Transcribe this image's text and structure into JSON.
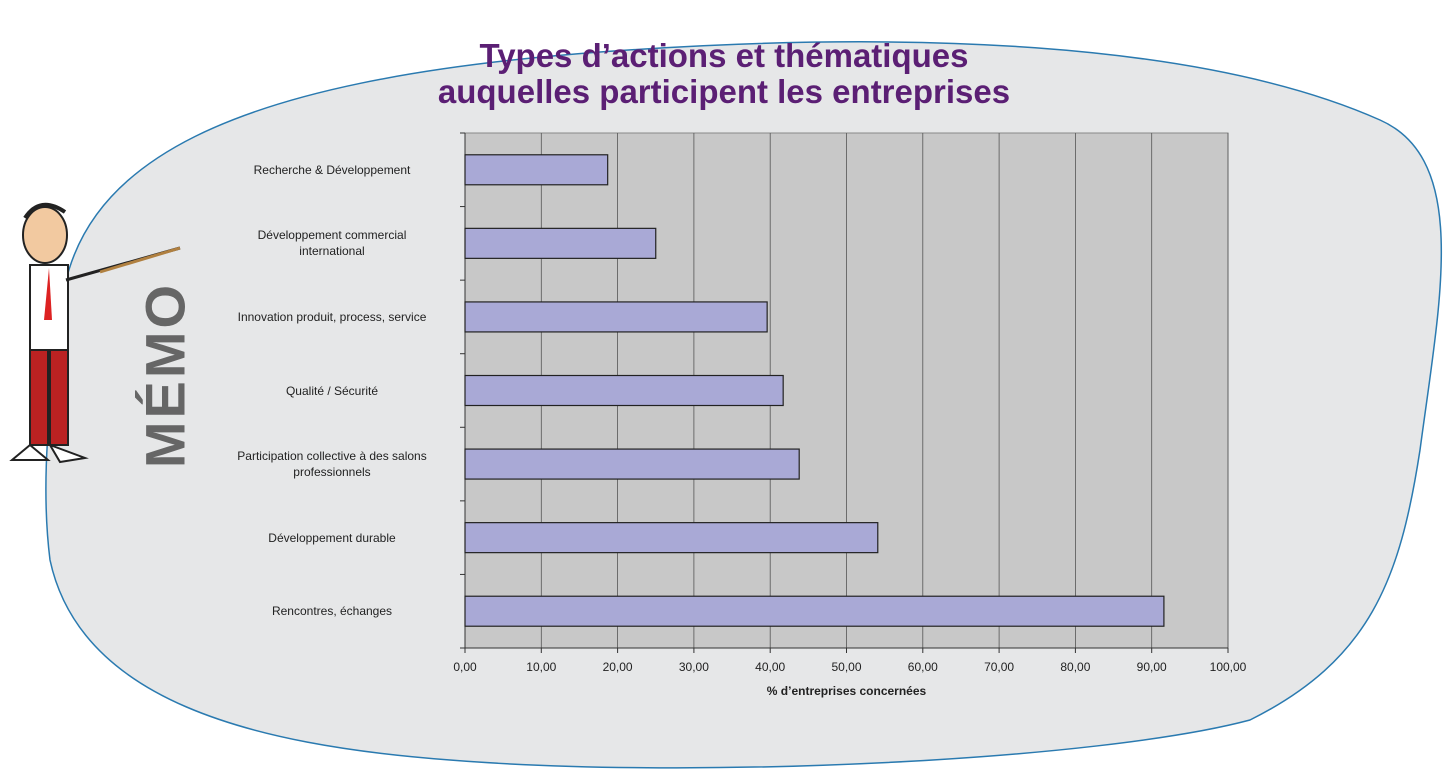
{
  "chart_data": {
    "type": "bar",
    "orientation": "horizontal",
    "title": "Types d’actions et thématiques\nauquelles participent les entreprises",
    "side_label": "MÉMO",
    "x_label": "% d’entreprises concernées",
    "categories": [
      "Recherche & Développement",
      "Développement commercial\ninternational",
      "Innovation produit, process, service",
      "Qualité / Sécurité",
      "Participation collective à des salons\nprofessionnels",
      "Développement durable",
      "Rencontres, échanges"
    ],
    "values": [
      18.7,
      25.0,
      39.6,
      41.7,
      43.8,
      54.1,
      91.6
    ],
    "color": "#a9a9d6",
    "xlim": [
      0,
      100
    ],
    "xticks": [
      {
        "value": 0,
        "label": "0,00"
      },
      {
        "value": 10,
        "label": "10,00"
      },
      {
        "value": 20,
        "label": "20,00"
      },
      {
        "value": 30,
        "label": "30,00"
      },
      {
        "value": 40,
        "label": "40,00"
      },
      {
        "value": 50,
        "label": "50,00"
      },
      {
        "value": 60,
        "label": "60,00"
      },
      {
        "value": 70,
        "label": "70,00"
      },
      {
        "value": 80,
        "label": "80,00"
      },
      {
        "value": 90,
        "label": "90,00"
      },
      {
        "value": 100,
        "label": "100,00"
      }
    ],
    "grid": true
  }
}
